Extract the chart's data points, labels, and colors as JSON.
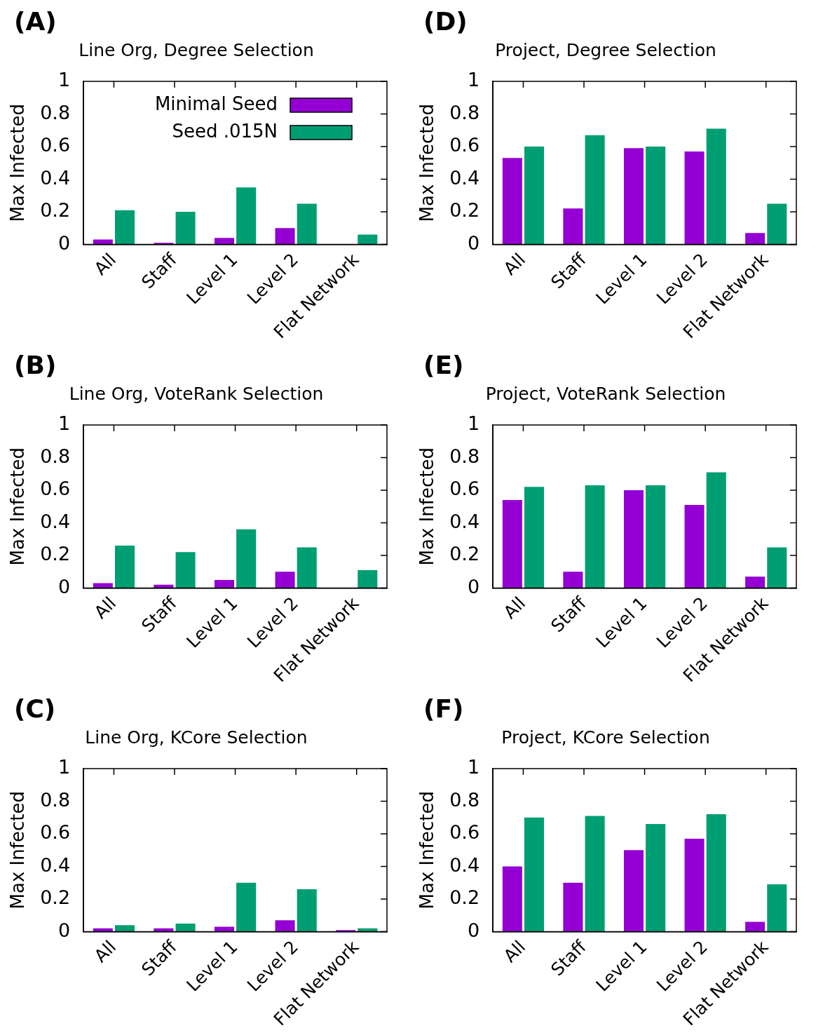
{
  "chart_data": [
    {
      "type": "bar",
      "title": "Line Org, Degree Selection",
      "annotations": [
        "(A)"
      ],
      "ylabel": "Max Infected",
      "categories": [
        "All",
        "Staff",
        "Level 1",
        "Level 2",
        "Flat Network"
      ],
      "ylim": [
        0,
        1
      ],
      "yticks": [
        0,
        0.2,
        0.4,
        0.6,
        0.8,
        1
      ],
      "legend": "top right",
      "series": [
        {
          "name": "Minimal Seed",
          "color": "#9400d3",
          "values": [
            0.03,
            0.01,
            0.04,
            0.1,
            0
          ]
        },
        {
          "name": "Seed .015N",
          "color": "#009e73",
          "values": [
            0.21,
            0.2,
            0.35,
            0.25,
            0.06
          ]
        }
      ]
    },
    {
      "type": "bar",
      "title": "Project, Degree Selection",
      "annotations": [
        "(D)"
      ],
      "ylabel": "Max Infected",
      "categories": [
        "All",
        "Staff",
        "Level 1",
        "Level 2",
        "Flat Network"
      ],
      "ylim": [
        0,
        1
      ],
      "yticks": [
        0,
        0.2,
        0.4,
        0.6,
        0.8,
        1
      ],
      "series": [
        {
          "color": "#9400d3",
          "values": [
            0.53,
            0.22,
            0.59,
            0.57,
            0.07
          ]
        },
        {
          "color": "#009e73",
          "values": [
            0.6,
            0.67,
            0.6,
            0.71,
            0.25
          ]
        }
      ]
    },
    {
      "type": "bar",
      "title": "Line Org, VoteRank Selection",
      "annotations": [
        "(B)"
      ],
      "ylabel": "Max Infected",
      "categories": [
        "All",
        "Staff",
        "Level 1",
        "Level 2",
        "Flat Network"
      ],
      "ylim": [
        0,
        1
      ],
      "yticks": [
        0,
        0.2,
        0.4,
        0.6,
        0.8,
        1
      ],
      "series": [
        {
          "color": "#9400d3",
          "values": [
            0.03,
            0.02,
            0.05,
            0.1,
            0
          ]
        },
        {
          "color": "#009e73",
          "values": [
            0.26,
            0.22,
            0.36,
            0.25,
            0.11
          ]
        }
      ]
    },
    {
      "type": "bar",
      "title": "Project, VoteRank Selection",
      "annotations": [
        "(E)"
      ],
      "ylabel": "Max Infected",
      "categories": [
        "All",
        "Staff",
        "Level 1",
        "Level 2",
        "Flat Network"
      ],
      "ylim": [
        0,
        1
      ],
      "yticks": [
        0,
        0.2,
        0.4,
        0.6,
        0.8,
        1
      ],
      "series": [
        {
          "color": "#9400d3",
          "values": [
            0.54,
            0.1,
            0.6,
            0.51,
            0.07
          ]
        },
        {
          "color": "#009e73",
          "values": [
            0.62,
            0.63,
            0.63,
            0.71,
            0.25
          ]
        }
      ]
    },
    {
      "type": "bar",
      "title": "Line Org, KCore Selection",
      "annotations": [
        "(C)"
      ],
      "ylabel": "Max Infected",
      "categories": [
        "All",
        "Staff",
        "Level 1",
        "Level 2",
        "Flat Network"
      ],
      "ylim": [
        0,
        1
      ],
      "yticks": [
        0,
        0.2,
        0.4,
        0.6,
        0.8,
        1
      ],
      "series": [
        {
          "color": "#9400d3",
          "values": [
            0.02,
            0.02,
            0.03,
            0.07,
            0.01
          ]
        },
        {
          "color": "#009e73",
          "values": [
            0.04,
            0.05,
            0.3,
            0.26,
            0.02
          ]
        }
      ]
    },
    {
      "type": "bar",
      "title": "Project, KCore Selection",
      "annotations": [
        "(F)"
      ],
      "ylabel": "Max Infected",
      "categories": [
        "All",
        "Staff",
        "Level 1",
        "Level 2",
        "Flat Network"
      ],
      "ylim": [
        0,
        1
      ],
      "yticks": [
        0,
        0.2,
        0.4,
        0.6,
        0.8,
        1
      ],
      "series": [
        {
          "color": "#9400d3",
          "values": [
            0.4,
            0.3,
            0.5,
            0.57,
            0.06
          ]
        },
        {
          "color": "#009e73",
          "values": [
            0.7,
            0.71,
            0.66,
            0.72,
            0.29
          ]
        }
      ]
    }
  ]
}
